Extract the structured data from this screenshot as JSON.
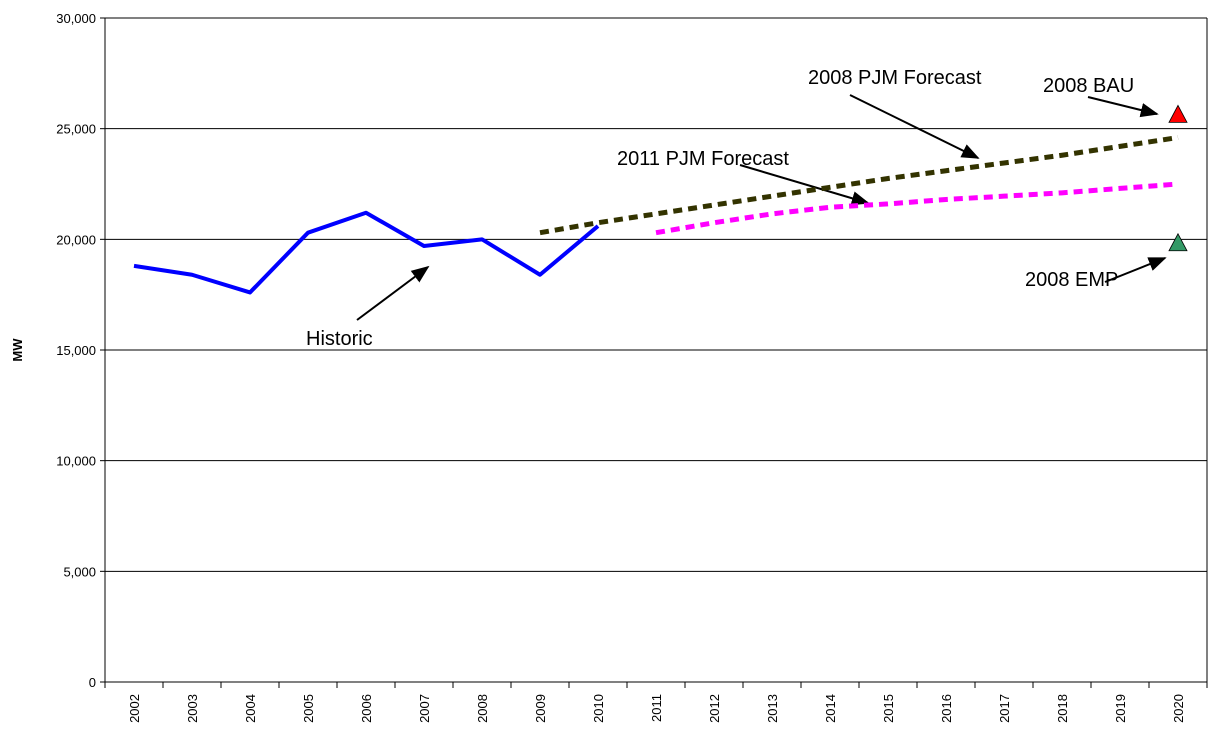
{
  "chart_data": {
    "type": "line",
    "ylabel": "MW",
    "categories": [
      "2002",
      "2003",
      "2004",
      "2005",
      "2006",
      "2007",
      "2008",
      "2009",
      "2010",
      "2011",
      "2012",
      "2013",
      "2014",
      "2015",
      "2016",
      "2017",
      "2018",
      "2019",
      "2020"
    ],
    "ylim": [
      0,
      30000
    ],
    "yticks": [
      0,
      {
        "value": 5000,
        "label": "5,000"
      },
      {
        "value": 10000,
        "label": "10,000"
      },
      {
        "value": 15000,
        "label": "15,000"
      },
      {
        "value": 20000,
        "label": "20,000"
      },
      {
        "value": 25000,
        "label": "25,000"
      },
      {
        "value": 30000,
        "label": "30,000"
      }
    ],
    "grid": true,
    "series": [
      {
        "name": "Historic",
        "color": "#0000ff",
        "style": "solid",
        "values": [
          18800,
          18400,
          17600,
          20300,
          21200,
          19700,
          20000,
          18400,
          20600,
          null,
          null,
          null,
          null,
          null,
          null,
          null,
          null,
          null,
          null
        ]
      },
      {
        "name": "2008 PJM Forecast",
        "color": "#333300",
        "style": "dashed",
        "values": [
          null,
          null,
          null,
          null,
          null,
          null,
          null,
          20300,
          20750,
          21150,
          21550,
          21950,
          22350,
          22750,
          23100,
          23450,
          23800,
          24200,
          24600
        ]
      },
      {
        "name": "2011 PJM Forecast",
        "color": "#ff00ff",
        "style": "dashed",
        "values": [
          null,
          null,
          null,
          null,
          null,
          null,
          null,
          null,
          null,
          20300,
          20750,
          21150,
          21450,
          21600,
          21800,
          21950,
          22100,
          22300,
          22500
        ]
      },
      {
        "name": "2008 BAU",
        "color": "#ff0000",
        "style": "marker",
        "values": [
          null,
          null,
          null,
          null,
          null,
          null,
          null,
          null,
          null,
          null,
          null,
          null,
          null,
          null,
          null,
          null,
          null,
          null,
          25600
        ]
      },
      {
        "name": "2008 EMP",
        "color": "#339966",
        "style": "marker",
        "values": [
          null,
          null,
          null,
          null,
          null,
          null,
          null,
          null,
          null,
          null,
          null,
          null,
          null,
          null,
          null,
          null,
          null,
          null,
          19800
        ]
      }
    ]
  }
}
